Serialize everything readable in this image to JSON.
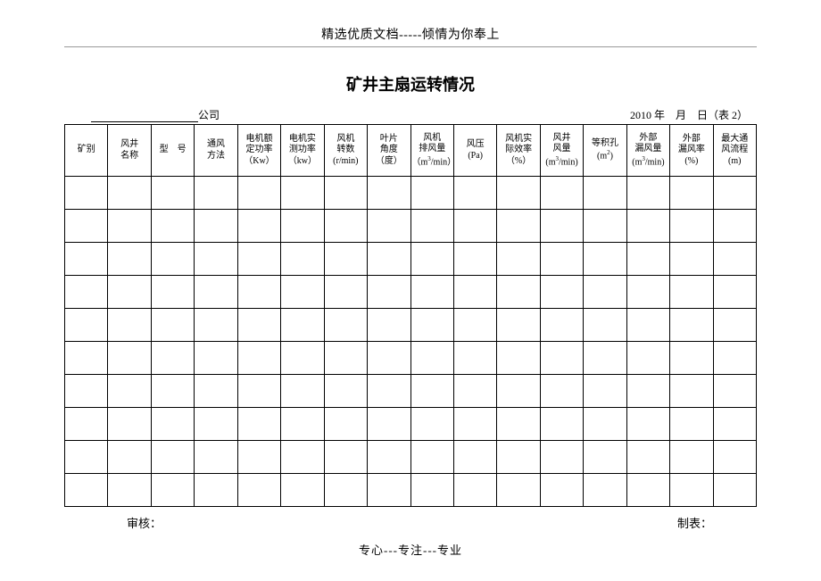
{
  "header_text": "精选优质文档-----倾情为你奉上",
  "title": "矿井主扇运转情况",
  "company_label": "公司",
  "date_text": "2010 年　月　日（表 2）",
  "columns": [
    {
      "l1": "矿别",
      "l2": ""
    },
    {
      "l1": "风井",
      "l2": "名称"
    },
    {
      "l1": "型　号",
      "l2": ""
    },
    {
      "l1": "通风",
      "l2": "方法"
    },
    {
      "l1": "电机额",
      "l2": "定功率",
      "l3": "（Kw）"
    },
    {
      "l1": "电机实",
      "l2": "测功率",
      "l3": "（kw）"
    },
    {
      "l1": "风机",
      "l2": "转数",
      "l3": "(r/min)"
    },
    {
      "l1": "叶片",
      "l2": "角度",
      "l3": "（度）"
    },
    {
      "l1": "风机",
      "l2": "排风量",
      "l3_html": "（m<sup>3</sup>/min）"
    },
    {
      "l1": "风压",
      "l2": "(Pa)"
    },
    {
      "l1": "风机实",
      "l2": "际效率",
      "l3": "（%）"
    },
    {
      "l1": "风井",
      "l2": "风量",
      "l3_html": "(m<sup>3</sup>/min)"
    },
    {
      "l1": "等积孔",
      "l2_html": "(m<sup>2</sup>)"
    },
    {
      "l1": "外部",
      "l2": "漏风量",
      "l3_html": "(m<sup>3</sup>/min)"
    },
    {
      "l1": "外部",
      "l2": "漏风率",
      "l3": "(%)"
    },
    {
      "l1": "最大通",
      "l2": "风流程",
      "l3": "(m)"
    }
  ],
  "row_count": 10,
  "approve_label": "审核：",
  "maker_label": "制表：",
  "footer_text": "专心---专注---专业"
}
